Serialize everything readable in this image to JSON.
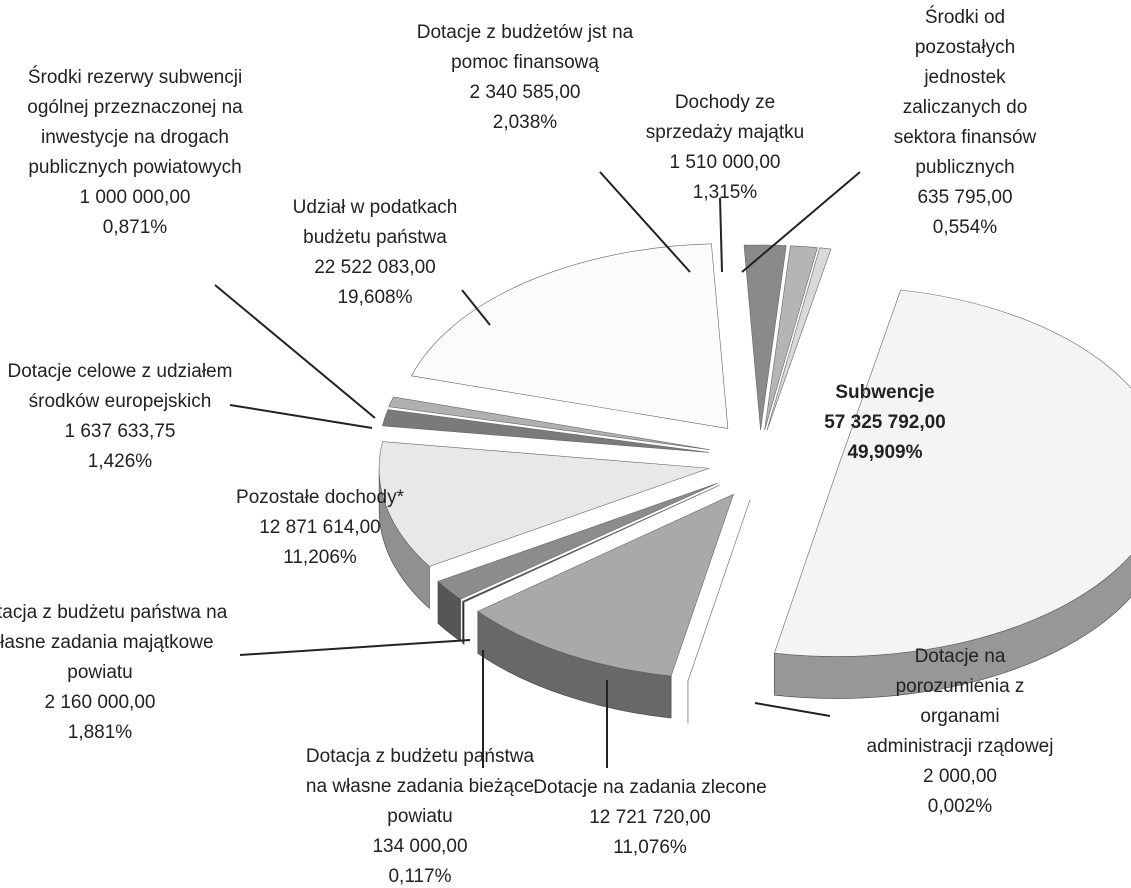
{
  "chart_data": {
    "type": "pie",
    "categories": [
      "Dotacje z budżetów jst na pomoc finansową",
      "Dochody ze sprzedaży majątku",
      "Środki od pozostałych jednostek zaliczanych do sektora finansów publicznych",
      "Subwencje",
      "Dotacje na porozumienia z organami administracji rządowej",
      "Dotacje na zadania zlecone",
      "Dotacja z budżetu państwa na własne zadania bieżące powiatu",
      "Dotacja z budżetu państwa na własne zadania majątkowe powiatu",
      "Pozostałe dochody*",
      "Dotacje celowe z udziałem środków europejskich",
      "Środki rezerwy subwencji ogólnej przeznaczonej na inwestycje na drogach publicznych powiatowych",
      "Udział w podatkach budżetu państwa"
    ],
    "values": [
      2.038,
      1.315,
      0.554,
      49.909,
      0.002,
      11.076,
      0.117,
      1.881,
      11.206,
      1.426,
      0.871,
      19.608
    ],
    "value_labels": [
      "2,038%",
      "1,315%",
      "0,554%",
      "49,909%",
      "0,002%",
      "11,076%",
      "0,117%",
      "1,881%",
      "11,206%",
      "1,426%",
      "0,871%",
      "19,608%"
    ],
    "amounts": [
      2340585,
      1510000,
      635795,
      57325792,
      2000,
      12721720,
      134000,
      2160000,
      12871614,
      1637633.75,
      1000000,
      22522083
    ],
    "amount_labels": [
      "2 340 585,00",
      "1 510 000,00",
      "635 795,00",
      "57 325 792,00",
      "2 000,00",
      "12 721 720,00",
      "134 000,00",
      "2 160 000,00",
      "12 871 614,00",
      "1 637 633,75",
      "1 000 000,00",
      "22 522 083,00"
    ],
    "colors": [
      "#8a8a8a",
      "#b5b5b5",
      "#d9d9d9",
      "#f4f4f4",
      "#bbbbbb",
      "#a9a9a9",
      "#4a4a4a",
      "#8c8c8c",
      "#e8e8e8",
      "#7a7a7a",
      "#b0b0b0",
      "#fbfbfb"
    ]
  }
}
